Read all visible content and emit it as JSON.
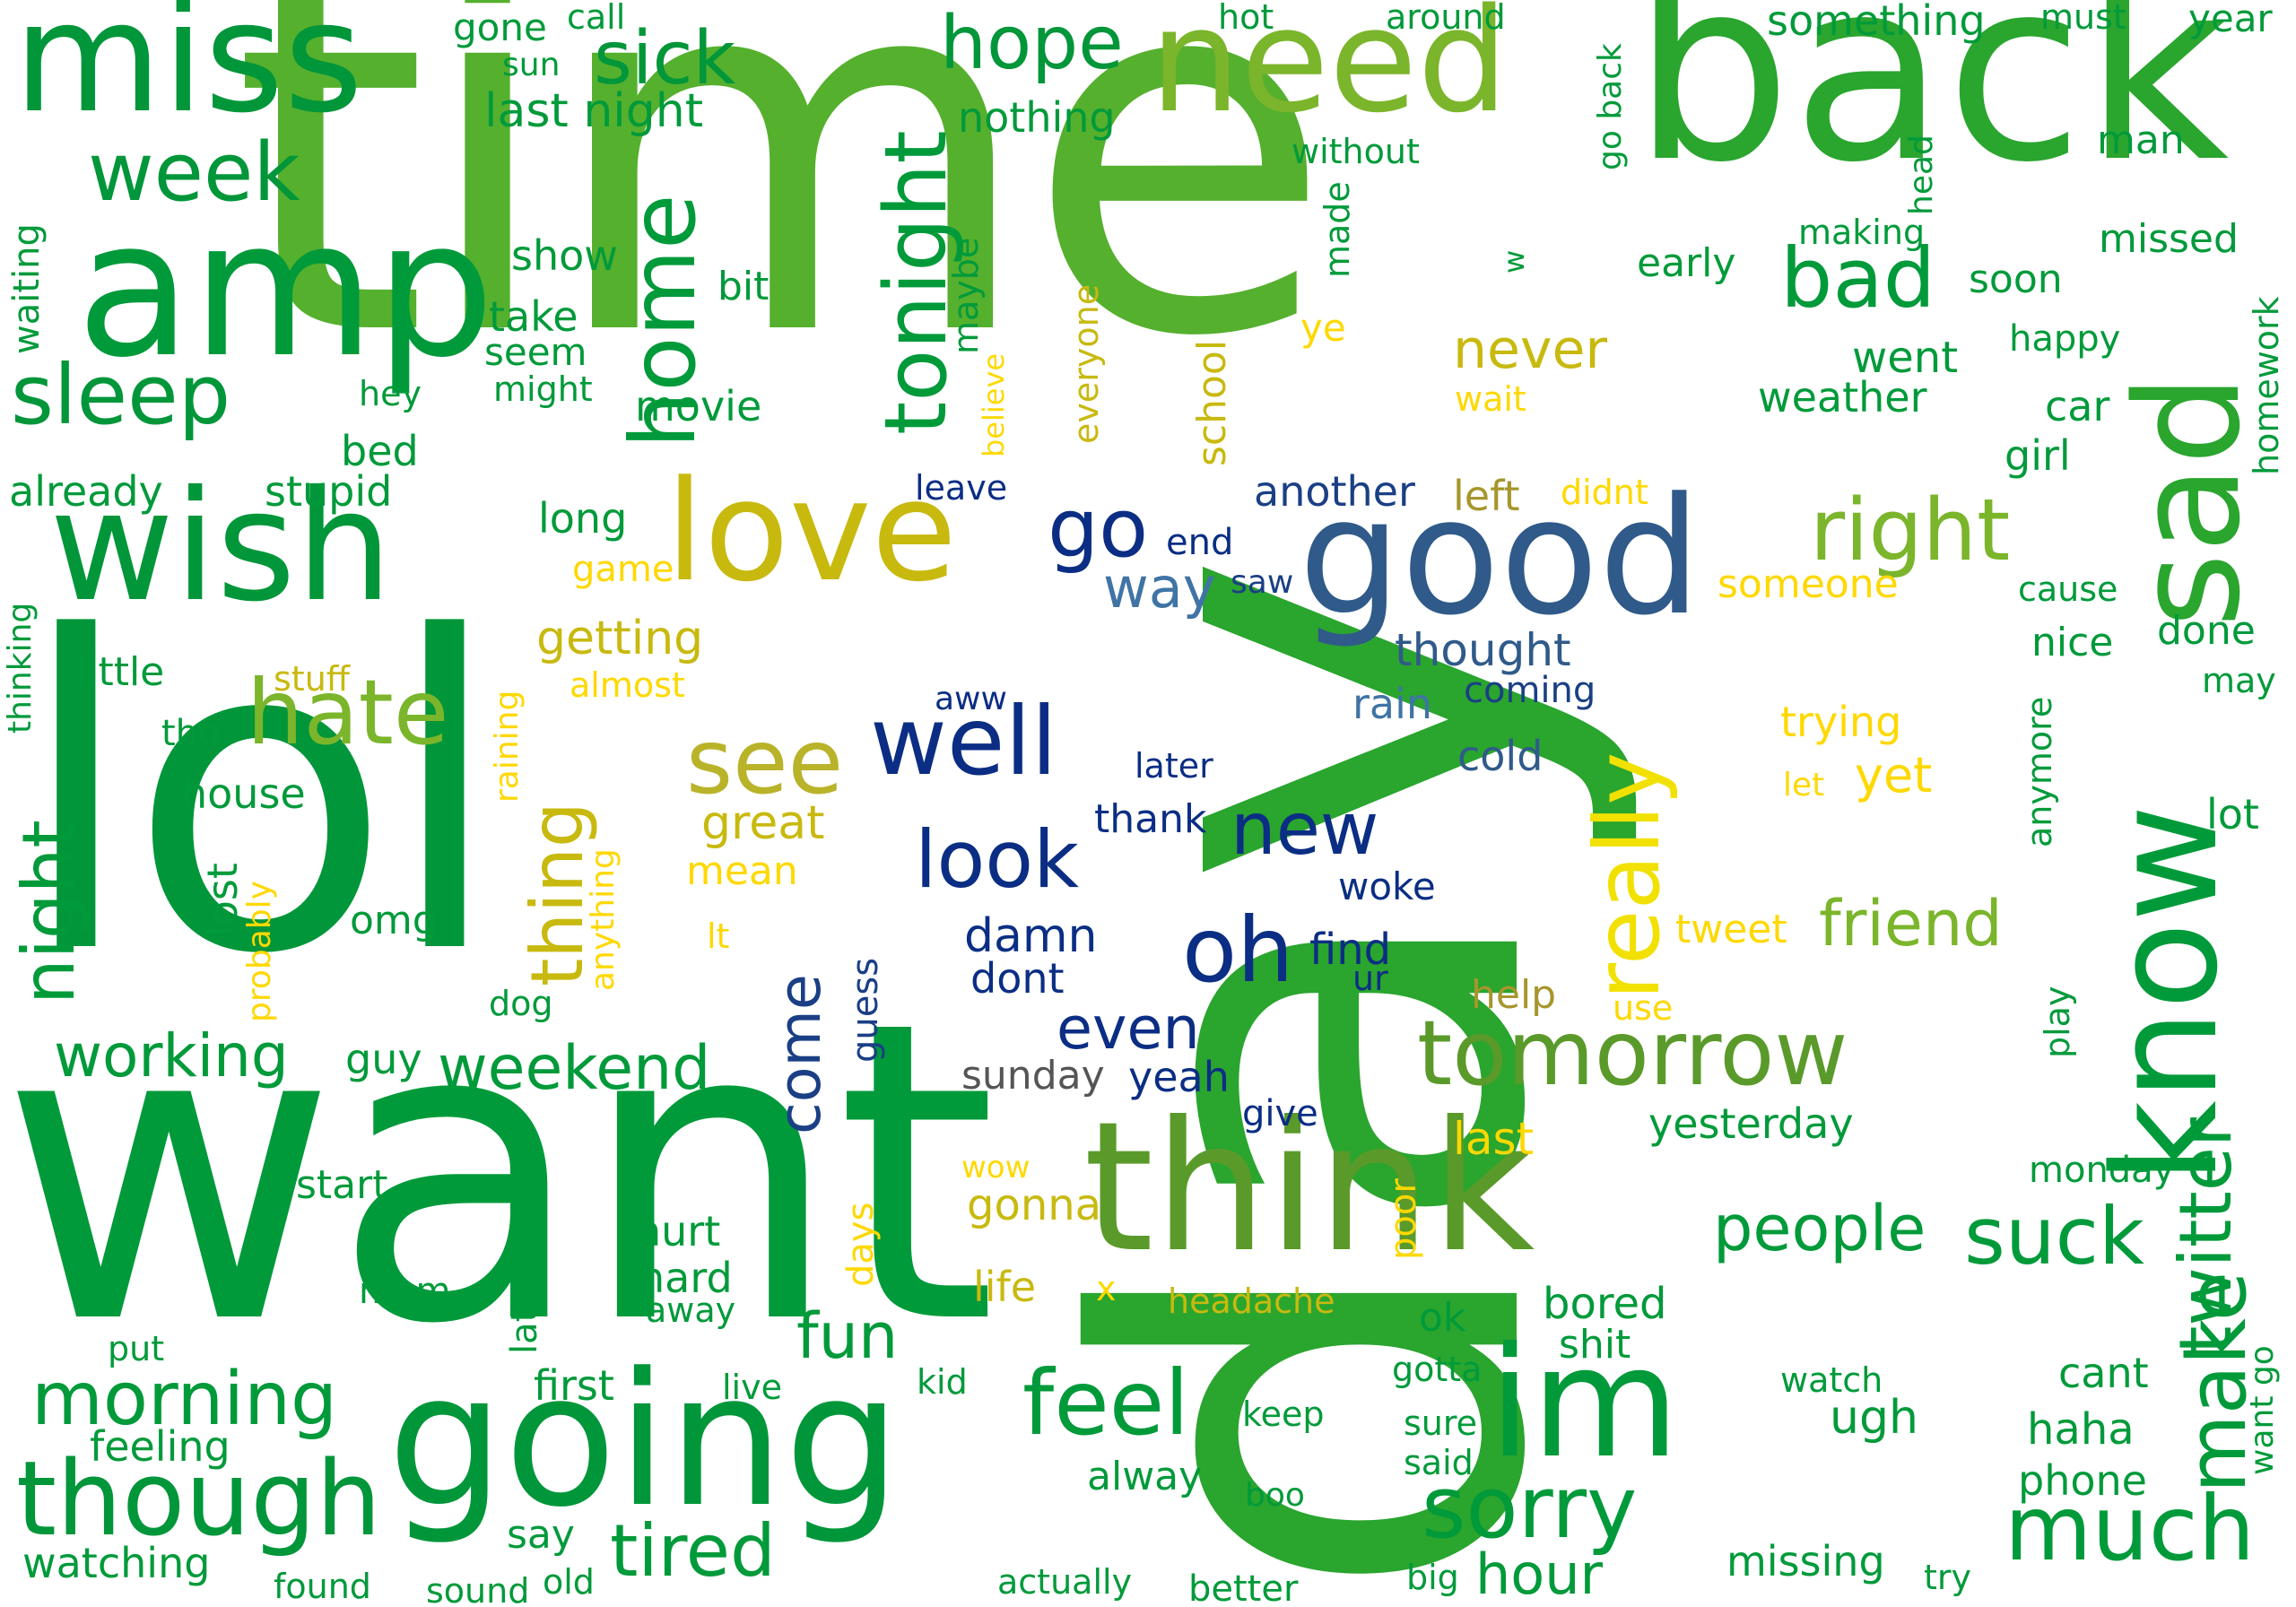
{
  "words": {
    "time": "time",
    "want": "want",
    "lol": "lol",
    "back": "back",
    "day": "day",
    "amp": "amp",
    "miss": "miss",
    "wish": "wish",
    "need": "need",
    "going": "going",
    "think": "think",
    "good": "good",
    "love": "love",
    "im": "im",
    "know": "know",
    "sad": "sad",
    "tomorrow": "tomorrow",
    "though": "though",
    "sleep": "sleep",
    "hate": "hate",
    "tonight": "tonight",
    "home": "home",
    "right": "right",
    "sick": "sick",
    "hope": "hope",
    "week": "week",
    "well": "well",
    "see": "see",
    "feel": "feel",
    "much": "much",
    "sorry": "sorry",
    "morning": "morning",
    "twitter": "twitter",
    "make": "make",
    "suck": "suck",
    "tired": "tired",
    "night": "night",
    "oh": "oh",
    "look": "look",
    "new": "new",
    "fun": "fun",
    "go": "go",
    "bad": "bad",
    "people": "people",
    "really": "really",
    "friend": "friend",
    "working": "working",
    "weekend": "weekend",
    "come": "come",
    "thing": "thing",
    "even": "even",
    "last_night": "last night",
    "nothing": "nothing",
    "something": "something",
    "gone": "gone",
    "call": "call",
    "hot": "hot",
    "around": "around",
    "must": "must",
    "year": "year",
    "sun": "sun",
    "go_back": "go back",
    "head": "head",
    "man": "man",
    "without": "without",
    "made": "made",
    "making": "making",
    "missed": "missed",
    "early": "early",
    "soon": "soon",
    "waiting": "waiting",
    "show": "show",
    "bit": "bit",
    "take": "take",
    "seem": "seem",
    "might": "might",
    "hey": "hey",
    "maybe": "maybe",
    "believe": "believe",
    "everyone": "everyone",
    "ye": "ye",
    "w": "w",
    "school": "school",
    "never": "never",
    "went": "went",
    "happy": "happy",
    "wait": "wait",
    "weather": "weather",
    "car": "car",
    "homework": "homework",
    "girl": "girl",
    "bed": "bed",
    "movie": "movie",
    "already": "already",
    "stupid": "stupid",
    "leave": "leave",
    "another": "another",
    "left": "left",
    "didnt": "didnt",
    "long": "long",
    "end": "end",
    "way": "way",
    "saw": "saw",
    "someone": "someone",
    "cause": "cause",
    "game": "game",
    "thought": "thought",
    "nice": "nice",
    "done": "done",
    "getting": "getting",
    "almost": "almost",
    "stuff": "stuff",
    "little": "little",
    "thinking": "thinking",
    "raining": "raining",
    "aww": "aww",
    "rain": "rain",
    "coming": "coming",
    "may": "may",
    "anymore": "anymore",
    "tho": "tho",
    "trying": "trying",
    "cold": "cold",
    "later": "later",
    "let": "let",
    "yet": "yet",
    "house": "house",
    "great": "great",
    "thank": "thank",
    "lot": "lot",
    "mean": "mean",
    "lost": "lost",
    "probably": "probably",
    "anything": "anything",
    "omg": "omg",
    "lt": "lt",
    "damn": "damn",
    "find": "find",
    "woke": "woke",
    "tweet": "tweet",
    "dont": "dont",
    "ur": "ur",
    "guess": "guess",
    "dog": "dog",
    "play": "play",
    "help": "help",
    "use": "use",
    "guy": "guy",
    "sunday": "sunday",
    "yeah": "yeah",
    "give": "give",
    "last": "last",
    "yesterday": "yesterday",
    "wow": "wow",
    "monday": "monday",
    "start": "start",
    "days": "days",
    "gonna": "gonna",
    "poor": "poor",
    "hurt": "hurt",
    "hard": "hard",
    "life": "life",
    "x": "x",
    "headache": "headache",
    "mom": "mom",
    "late": "late",
    "away": "away",
    "ok": "ok",
    "bored": "bored",
    "shit": "shit",
    "put": "put",
    "first": "first",
    "live": "live",
    "kid": "kid",
    "gotta": "gotta",
    "watch": "watch",
    "cant": "cant",
    "want_go": "want go",
    "keep": "keep",
    "sure": "sure",
    "ugh": "ugh",
    "haha": "haha",
    "feeling": "feeling",
    "said": "said",
    "alway": "alway",
    "phone": "phone",
    "boo": "boo",
    "say": "say",
    "watching": "watching",
    "found": "found",
    "sound": "sound",
    "old": "old",
    "hour": "hour",
    "actually": "actually",
    "better": "better",
    "big": "big",
    "missing": "missing",
    "try": "try"
  },
  "colors": {
    "green_dark": "#009a3a",
    "green": "#2aa52e",
    "green_light": "#55b02e",
    "green_yellow": "#7bb52b",
    "olive": "#c8b90f",
    "yellow": "#f2e100",
    "navy": "#0b2e84",
    "steel_blue": "#2f5a8a",
    "gray": "#555555"
  }
}
